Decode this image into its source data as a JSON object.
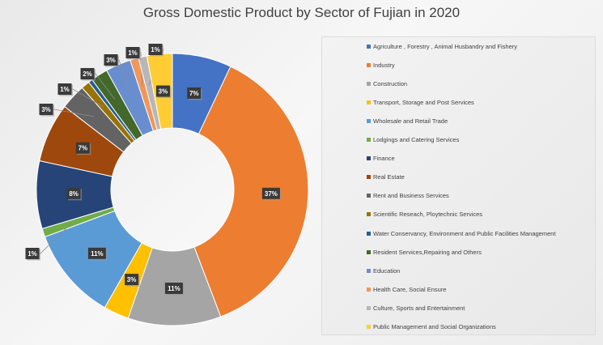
{
  "chart_data": {
    "type": "pie",
    "subtype": "doughnut",
    "title": "Gross Domestic Product by Sector of Fujian in 2020",
    "legend_position": "right",
    "series": [
      {
        "name": "Agriculture , Forestry , Animal Husbandry and Fishery",
        "value": 7,
        "label": "7%",
        "color": "#4472C4"
      },
      {
        "name": "Industry",
        "value": 37,
        "label": "37%",
        "color": "#ED7D31"
      },
      {
        "name": "Construction",
        "value": 11,
        "label": "11%",
        "color": "#A5A5A5"
      },
      {
        "name": "Transport, Storage and Post Services",
        "value": 3,
        "label": "3%",
        "color": "#FFC000"
      },
      {
        "name": "Wholesale and Retail Trade",
        "value": 11,
        "label": "11%",
        "color": "#5B9BD5"
      },
      {
        "name": "Lodgings and Catering Services",
        "value": 1,
        "label": "1%",
        "color": "#70AD47"
      },
      {
        "name": "Finance",
        "value": 8,
        "label": "8%",
        "color": "#264478"
      },
      {
        "name": "Real Estate",
        "value": 7,
        "label": "7%",
        "color": "#9E480E"
      },
      {
        "name": "Rent and Business Services",
        "value": 3,
        "label": "3%",
        "color": "#636363"
      },
      {
        "name": "Scientific Reseach, Ploytechnic Services",
        "value": 1,
        "label": "1%",
        "color": "#997300"
      },
      {
        "name": "Water Conservancy, Environment and Public Facilities Management",
        "value": 0.5,
        "label": "",
        "color": "#255E91"
      },
      {
        "name": "Resident Services,Repairing and Others",
        "value": 2,
        "label": "2%",
        "color": "#43682B"
      },
      {
        "name": "Education",
        "value": 3,
        "label": "3%",
        "color": "#698ED0"
      },
      {
        "name": "Health Care, Social Ensure",
        "value": 1,
        "label": "1%",
        "color": "#F1975A"
      },
      {
        "name": "Culture, Sports and Entertainment",
        "value": 1,
        "label": "1%",
        "color": "#B7B7B7"
      },
      {
        "name": "Public Management and Social Organizations",
        "value": 3,
        "label": "3%",
        "color": "#FFCD33"
      }
    ]
  }
}
